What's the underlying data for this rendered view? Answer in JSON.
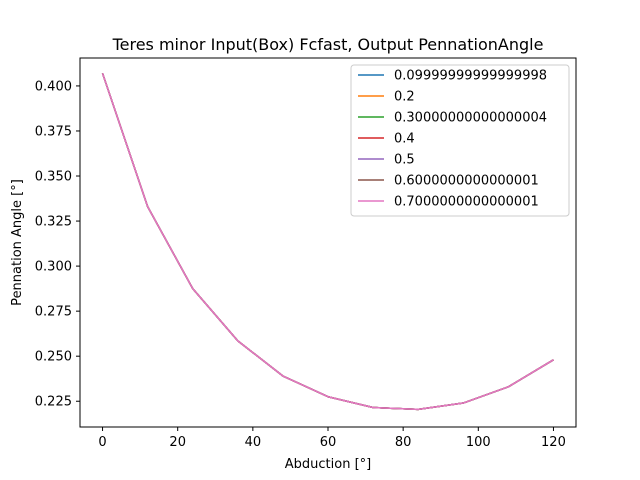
{
  "chart_data": {
    "type": "line",
    "title": "Teres minor Input(Box) Fcfast, Output PennationAngle",
    "xlabel": "Abduction [°]",
    "ylabel": "Pennation Angle [°]",
    "xlim": [
      -6,
      126
    ],
    "ylim": [
      0.2107,
      0.4155
    ],
    "xticks": [
      0,
      20,
      40,
      60,
      80,
      100,
      120
    ],
    "xtick_labels": [
      "0",
      "20",
      "40",
      "60",
      "80",
      "100",
      "120"
    ],
    "yticks": [
      0.225,
      0.25,
      0.275,
      0.3,
      0.325,
      0.35,
      0.375,
      0.4
    ],
    "ytick_labels": [
      "0.225",
      "0.250",
      "0.275",
      "0.300",
      "0.325",
      "0.350",
      "0.375",
      "0.400"
    ],
    "grid": false,
    "legend_position": "top-right",
    "x": [
      0,
      12,
      24,
      36,
      48,
      60,
      72,
      84,
      96,
      108,
      120
    ],
    "series": [
      {
        "name": "0.09999999999999998",
        "color": "#1f77b4",
        "values": [
          0.407,
          0.333,
          0.2875,
          0.2585,
          0.239,
          0.2275,
          0.2215,
          0.2205,
          0.224,
          0.233,
          0.248
        ]
      },
      {
        "name": "0.2",
        "color": "#ff7f0e",
        "values": [
          0.407,
          0.333,
          0.2875,
          0.2585,
          0.239,
          0.2275,
          0.2215,
          0.2205,
          0.224,
          0.233,
          0.248
        ]
      },
      {
        "name": "0.30000000000000004",
        "color": "#2ca02c",
        "values": [
          0.407,
          0.333,
          0.2875,
          0.2585,
          0.239,
          0.2275,
          0.2215,
          0.2205,
          0.224,
          0.233,
          0.248
        ]
      },
      {
        "name": "0.4",
        "color": "#d62728",
        "values": [
          0.407,
          0.333,
          0.2875,
          0.2585,
          0.239,
          0.2275,
          0.2215,
          0.2205,
          0.224,
          0.233,
          0.248
        ]
      },
      {
        "name": "0.5",
        "color": "#9467bd",
        "values": [
          0.407,
          0.333,
          0.2875,
          0.2585,
          0.239,
          0.2275,
          0.2215,
          0.2205,
          0.224,
          0.233,
          0.248
        ]
      },
      {
        "name": "0.6000000000000001",
        "color": "#8c564b",
        "values": [
          0.407,
          0.333,
          0.2875,
          0.2585,
          0.239,
          0.2275,
          0.2215,
          0.2205,
          0.224,
          0.233,
          0.248
        ]
      },
      {
        "name": "0.7000000000000001",
        "color": "#e377c2",
        "values": [
          0.407,
          0.333,
          0.2875,
          0.2585,
          0.239,
          0.2275,
          0.2215,
          0.2205,
          0.224,
          0.233,
          0.248
        ]
      }
    ]
  }
}
